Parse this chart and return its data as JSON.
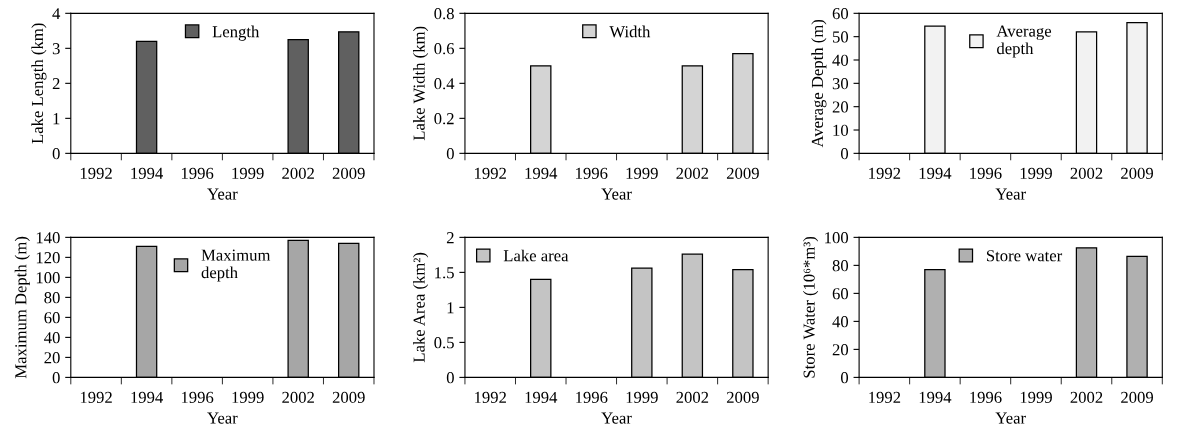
{
  "chart_data": [
    {
      "type": "bar",
      "xlabel": "Year",
      "ylabel": "Lake Length (km)",
      "categories": [
        "1992",
        "1994",
        "1996",
        "1999",
        "2002",
        "2009"
      ],
      "series": [
        {
          "name": "Length",
          "color": "#606060",
          "values": [
            null,
            3.2,
            null,
            null,
            3.25,
            3.47
          ]
        }
      ],
      "ylim": [
        0,
        4
      ],
      "yticks": [
        0,
        1,
        2,
        3,
        4
      ],
      "legend": "top",
      "grid": false
    },
    {
      "type": "bar",
      "xlabel": "Year",
      "ylabel": "Lake Width (km)",
      "categories": [
        "1992",
        "1994",
        "1996",
        "1999",
        "2002",
        "2009"
      ],
      "series": [
        {
          "name": "Width",
          "color": "#d4d4d4",
          "values": [
            null,
            0.5,
            null,
            null,
            0.5,
            0.57
          ]
        }
      ],
      "ylim": [
        0,
        0.8
      ],
      "yticks": [
        {
          "value": 0,
          "label": "0"
        },
        0.2,
        0.4,
        0.6,
        0.8
      ],
      "legend": "top",
      "grid": false
    },
    {
      "type": "bar",
      "xlabel": "Year",
      "ylabel": "Average Depth (m)",
      "categories": [
        "1992",
        "1994",
        "1996",
        "1999",
        "2002",
        "2009"
      ],
      "series": [
        {
          "name": "Average\ndepth",
          "color": "#f2f2f2",
          "values": [
            null,
            54.5,
            null,
            null,
            52,
            56
          ]
        }
      ],
      "ylim": [
        0,
        60
      ],
      "yticks": [
        0,
        10,
        20,
        30,
        40,
        50,
        60
      ],
      "legend": "top",
      "grid": false
    },
    {
      "type": "bar",
      "xlabel": "Year",
      "ylabel": "Maximum Depth (m)",
      "categories": [
        "1992",
        "1994",
        "1996",
        "1999",
        "2002",
        "2009"
      ],
      "series": [
        {
          "name": "Maximum\ndepth",
          "color": "#a6a6a6",
          "values": [
            null,
            131,
            null,
            null,
            137,
            134
          ]
        }
      ],
      "ylim": [
        0,
        140
      ],
      "yticks": [
        0,
        20,
        40,
        60,
        80,
        100,
        120,
        140
      ],
      "legend": "top",
      "grid": false
    },
    {
      "type": "bar",
      "xlabel": "Year",
      "ylabel": "Lake Area (km²)",
      "categories": [
        "1992",
        "1994",
        "1996",
        "1999",
        "2002",
        "2009"
      ],
      "series": [
        {
          "name": "Lake area",
          "color": "#c4c4c4",
          "values": [
            null,
            1.4,
            null,
            1.56,
            1.76,
            1.54
          ]
        }
      ],
      "ylim": [
        0,
        2
      ],
      "yticks": [
        0,
        0.5,
        1,
        1.5,
        2
      ],
      "legend": "top left",
      "grid": false
    },
    {
      "type": "bar",
      "xlabel": "Year",
      "ylabel": "Store Water (10⁶*m³)",
      "categories": [
        "1992",
        "1994",
        "1996",
        "1999",
        "2002",
        "2009"
      ],
      "series": [
        {
          "name": "Store water",
          "color": "#b0b0b0",
          "values": [
            null,
            77,
            null,
            null,
            92.5,
            86.5
          ]
        }
      ],
      "ylim": [
        0,
        100
      ],
      "yticks": [
        0,
        20,
        40,
        60,
        80,
        100
      ],
      "legend": "top",
      "grid": false
    }
  ]
}
